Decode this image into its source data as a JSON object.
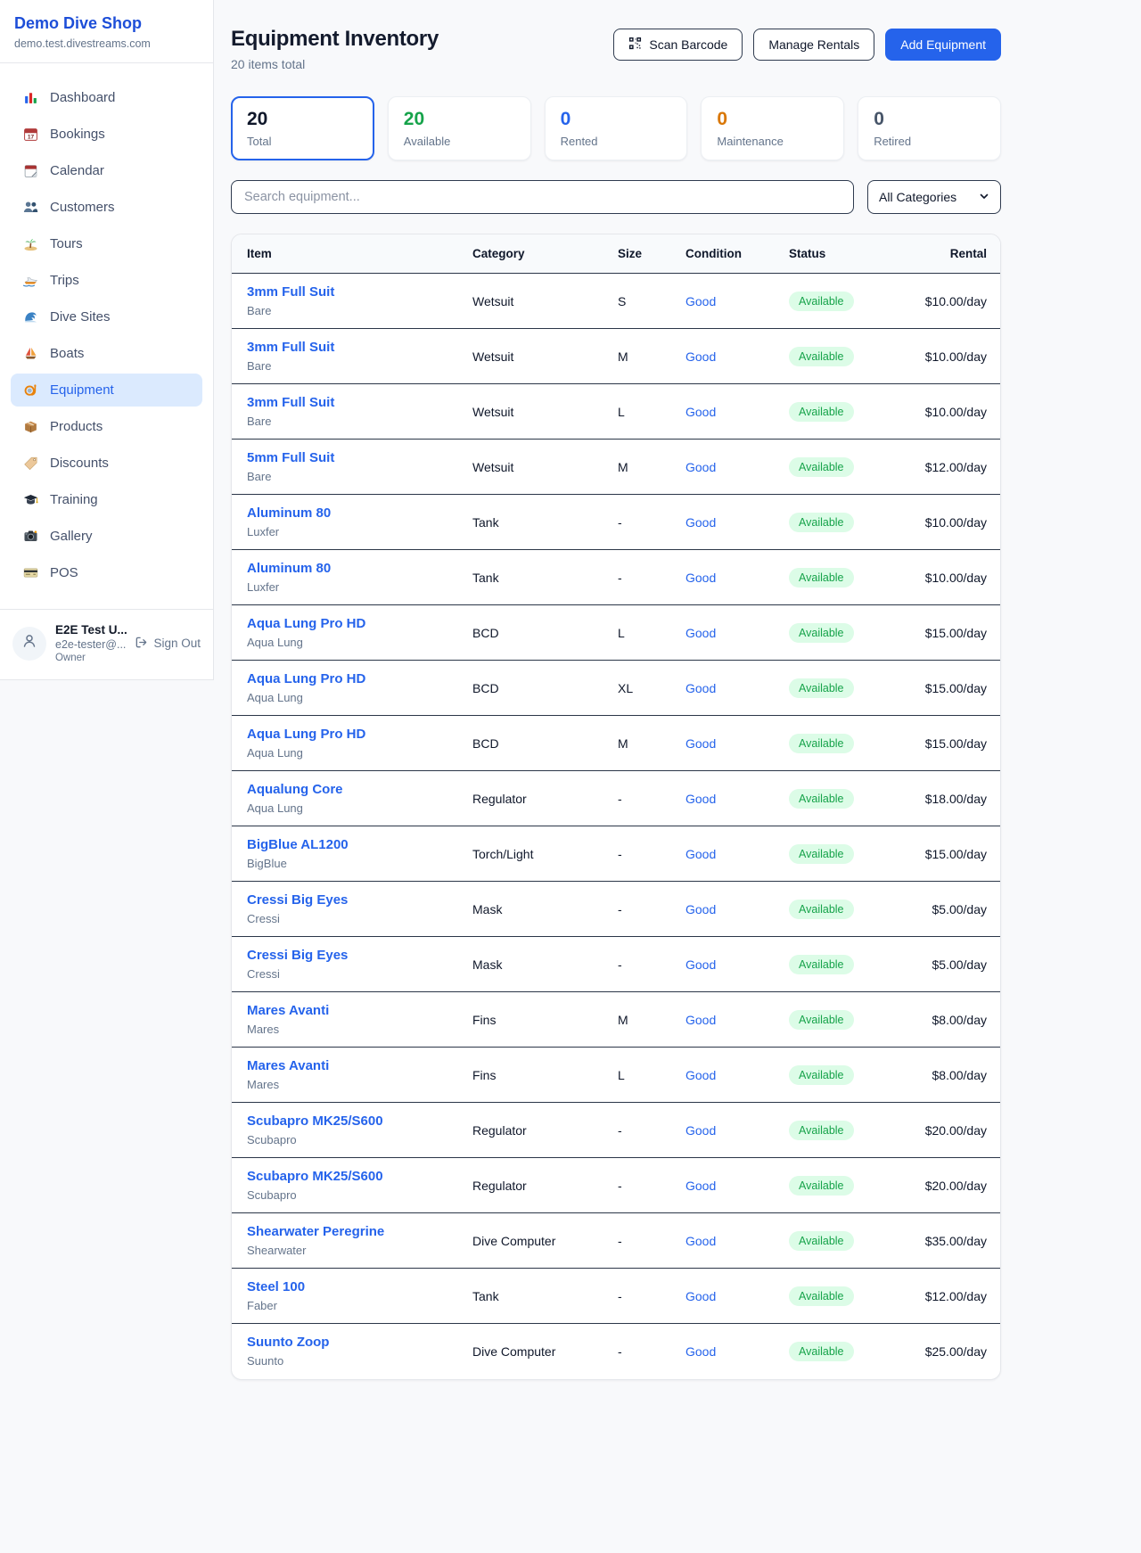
{
  "colors": {
    "page_bg": "#f8f9fb",
    "accent": "#2563eb",
    "brand_title": "#1d4ed8",
    "link": "#2563eb",
    "green": "#16a34a",
    "green_bg": "#dcfce7",
    "orange": "#d97706",
    "dark": "#0f172a",
    "text_secondary": "#64748b",
    "border_dark": "#2f3b4f",
    "border_light": "#e5e7eb",
    "row_border": "#2b3648",
    "active_bg": "#dbeafe"
  },
  "sidebar": {
    "brand": {
      "name": "Demo Dive Shop",
      "domain": "demo.test.divestreams.com"
    },
    "nav": [
      {
        "icon": "bar-chart-icon",
        "label": "Dashboard",
        "active": false
      },
      {
        "icon": "calendar-date-icon",
        "label": "Bookings",
        "active": false
      },
      {
        "icon": "tear-calendar-icon",
        "label": "Calendar",
        "active": false
      },
      {
        "icon": "two-people-icon",
        "label": "Customers",
        "active": false
      },
      {
        "icon": "desert-island-icon",
        "label": "Tours",
        "active": false
      },
      {
        "icon": "speedboat-icon",
        "label": "Trips",
        "active": false
      },
      {
        "icon": "wave-icon",
        "label": "Dive Sites",
        "active": false
      },
      {
        "icon": "sailboat-icon",
        "label": "Boats",
        "active": false
      },
      {
        "icon": "diving-mask-icon",
        "label": "Equipment",
        "active": true
      },
      {
        "icon": "package-icon",
        "label": "Products",
        "active": false
      },
      {
        "icon": "tag-icon",
        "label": "Discounts",
        "active": false
      },
      {
        "icon": "graduation-cap-icon",
        "label": "Training",
        "active": false
      },
      {
        "icon": "camera-icon",
        "label": "Gallery",
        "active": false
      },
      {
        "icon": "credit-card-icon",
        "label": "POS",
        "active": false
      }
    ],
    "user": {
      "name": "E2E Test U...",
      "email": "e2e-tester@...",
      "role": "Owner",
      "sign_out": "Sign Out"
    }
  },
  "header": {
    "title": "Equipment Inventory",
    "subtitle": "20 items total",
    "buttons": {
      "scan": "Scan Barcode",
      "manage": "Manage Rentals",
      "add": "Add Equipment"
    }
  },
  "stats": [
    {
      "value": "20",
      "label": "Total",
      "color": "#0f172a",
      "selected": true
    },
    {
      "value": "20",
      "label": "Available",
      "color": "#16a34a",
      "selected": false
    },
    {
      "value": "0",
      "label": "Rented",
      "color": "#2563eb",
      "selected": false
    },
    {
      "value": "0",
      "label": "Maintenance",
      "color": "#d97706",
      "selected": false
    },
    {
      "value": "0",
      "label": "Retired",
      "color": "#475569",
      "selected": false
    }
  ],
  "filters": {
    "search_placeholder": "Search equipment...",
    "category_selected": "All Categories"
  },
  "table": {
    "columns": [
      "Item",
      "Category",
      "Size",
      "Condition",
      "Status",
      "Rental"
    ],
    "rows": [
      {
        "name": "3mm Full Suit",
        "brand": "Bare",
        "category": "Wetsuit",
        "size": "S",
        "condition": "Good",
        "status": "Available",
        "rental": "$10.00/day"
      },
      {
        "name": "3mm Full Suit",
        "brand": "Bare",
        "category": "Wetsuit",
        "size": "M",
        "condition": "Good",
        "status": "Available",
        "rental": "$10.00/day"
      },
      {
        "name": "3mm Full Suit",
        "brand": "Bare",
        "category": "Wetsuit",
        "size": "L",
        "condition": "Good",
        "status": "Available",
        "rental": "$10.00/day"
      },
      {
        "name": "5mm Full Suit",
        "brand": "Bare",
        "category": "Wetsuit",
        "size": "M",
        "condition": "Good",
        "status": "Available",
        "rental": "$12.00/day"
      },
      {
        "name": "Aluminum 80",
        "brand": "Luxfer",
        "category": "Tank",
        "size": "-",
        "condition": "Good",
        "status": "Available",
        "rental": "$10.00/day"
      },
      {
        "name": "Aluminum 80",
        "brand": "Luxfer",
        "category": "Tank",
        "size": "-",
        "condition": "Good",
        "status": "Available",
        "rental": "$10.00/day"
      },
      {
        "name": "Aqua Lung Pro HD",
        "brand": "Aqua Lung",
        "category": "BCD",
        "size": "L",
        "condition": "Good",
        "status": "Available",
        "rental": "$15.00/day"
      },
      {
        "name": "Aqua Lung Pro HD",
        "brand": "Aqua Lung",
        "category": "BCD",
        "size": "XL",
        "condition": "Good",
        "status": "Available",
        "rental": "$15.00/day"
      },
      {
        "name": "Aqua Lung Pro HD",
        "brand": "Aqua Lung",
        "category": "BCD",
        "size": "M",
        "condition": "Good",
        "status": "Available",
        "rental": "$15.00/day"
      },
      {
        "name": "Aqualung Core",
        "brand": "Aqua Lung",
        "category": "Regulator",
        "size": "-",
        "condition": "Good",
        "status": "Available",
        "rental": "$18.00/day"
      },
      {
        "name": "BigBlue AL1200",
        "brand": "BigBlue",
        "category": "Torch/Light",
        "size": "-",
        "condition": "Good",
        "status": "Available",
        "rental": "$15.00/day"
      },
      {
        "name": "Cressi Big Eyes",
        "brand": "Cressi",
        "category": "Mask",
        "size": "-",
        "condition": "Good",
        "status": "Available",
        "rental": "$5.00/day"
      },
      {
        "name": "Cressi Big Eyes",
        "brand": "Cressi",
        "category": "Mask",
        "size": "-",
        "condition": "Good",
        "status": "Available",
        "rental": "$5.00/day"
      },
      {
        "name": "Mares Avanti",
        "brand": "Mares",
        "category": "Fins",
        "size": "M",
        "condition": "Good",
        "status": "Available",
        "rental": "$8.00/day"
      },
      {
        "name": "Mares Avanti",
        "brand": "Mares",
        "category": "Fins",
        "size": "L",
        "condition": "Good",
        "status": "Available",
        "rental": "$8.00/day"
      },
      {
        "name": "Scubapro MK25/S600",
        "brand": "Scubapro",
        "category": "Regulator",
        "size": "-",
        "condition": "Good",
        "status": "Available",
        "rental": "$20.00/day"
      },
      {
        "name": "Scubapro MK25/S600",
        "brand": "Scubapro",
        "category": "Regulator",
        "size": "-",
        "condition": "Good",
        "status": "Available",
        "rental": "$20.00/day"
      },
      {
        "name": "Shearwater Peregrine",
        "brand": "Shearwater",
        "category": "Dive Computer",
        "size": "-",
        "condition": "Good",
        "status": "Available",
        "rental": "$35.00/day"
      },
      {
        "name": "Steel 100",
        "brand": "Faber",
        "category": "Tank",
        "size": "-",
        "condition": "Good",
        "status": "Available",
        "rental": "$12.00/day"
      },
      {
        "name": "Suunto Zoop",
        "brand": "Suunto",
        "category": "Dive Computer",
        "size": "-",
        "condition": "Good",
        "status": "Available",
        "rental": "$25.00/day"
      }
    ]
  }
}
